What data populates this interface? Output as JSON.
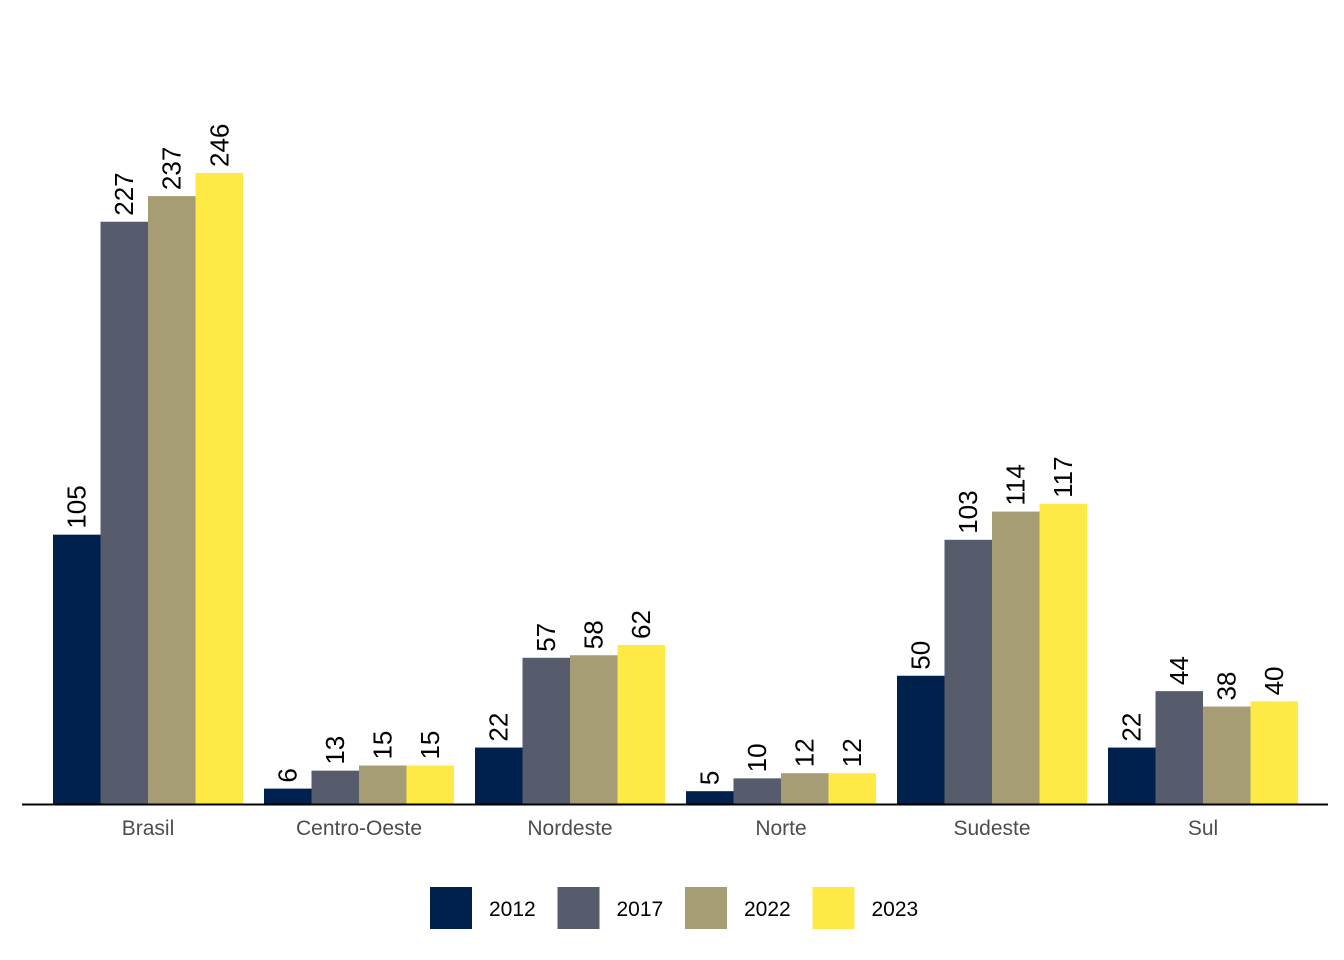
{
  "chart_data": {
    "type": "bar",
    "title": "",
    "xlabel": "",
    "ylabel": "",
    "ylim": [
      0,
      250
    ],
    "grid": false,
    "legend_position": "bottom",
    "categories": [
      "Brasil",
      "Centro-Oeste",
      "Nordeste",
      "Norte",
      "Sudeste",
      "Sul"
    ],
    "series": [
      {
        "name": "2012",
        "color": "#00214e",
        "values": [
          105,
          6,
          22,
          5,
          50,
          22
        ]
      },
      {
        "name": "2017",
        "color": "#575c6d",
        "values": [
          227,
          13,
          57,
          10,
          103,
          44
        ]
      },
      {
        "name": "2022",
        "color": "#a69d75",
        "values": [
          237,
          15,
          58,
          12,
          114,
          38
        ]
      },
      {
        "name": "2023",
        "color": "#ffe945",
        "values": [
          246,
          15,
          62,
          12,
          117,
          40
        ]
      }
    ]
  }
}
